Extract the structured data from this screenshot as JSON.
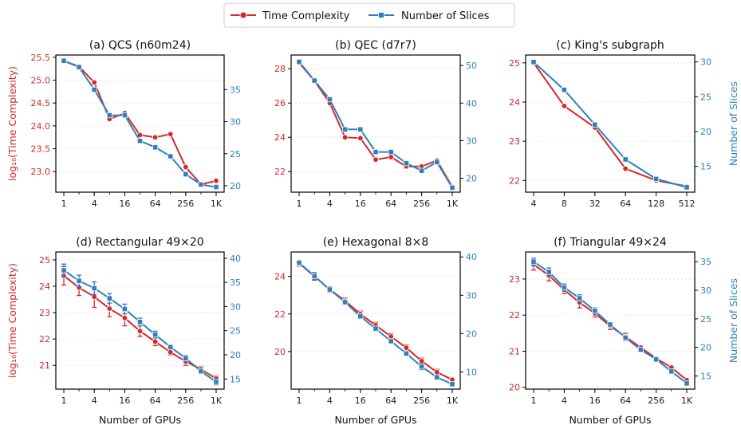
{
  "legend": {
    "time_label": "Time Complexity",
    "slices_label": "Number of Slices"
  },
  "colors": {
    "time": "#d62728",
    "slices": "#2f7fbf",
    "grid": "#d9d9d9"
  },
  "shared": {
    "xlabel": "Number of GPUs",
    "ylabel_left": "log₁₀(Time Complexity)",
    "ylabel_right": "Number of Slices"
  },
  "chart_data": [
    {
      "type": "line",
      "title": "(a) QCS (n60m24)",
      "x": [
        1,
        2,
        4,
        8,
        16,
        32,
        64,
        128,
        256,
        512,
        1024
      ],
      "xticks": [
        "1",
        "4",
        "16",
        "64",
        "256",
        "1K"
      ],
      "xtick_values": [
        1,
        4,
        16,
        64,
        256,
        1024
      ],
      "xscale": "log2",
      "left": {
        "name": "Time Complexity",
        "values": [
          25.42,
          25.3,
          24.95,
          24.15,
          24.28,
          23.8,
          23.75,
          23.82,
          23.1,
          22.72,
          22.8
        ],
        "ylim": [
          22.55,
          25.55
        ],
        "ticks": [
          23.0,
          23.5,
          24.0,
          24.5,
          25.0,
          25.5
        ],
        "tick_labels": [
          "23.0",
          "23.5",
          "24.0",
          "24.5",
          "25.0",
          "25.5"
        ]
      },
      "right": {
        "name": "Number of Slices",
        "values": [
          39.5,
          38.5,
          35,
          31,
          31,
          27,
          26,
          24.6,
          21.8,
          20.2,
          19.8
        ],
        "ylim": [
          19,
          40.4
        ],
        "ticks": [
          20,
          25,
          30,
          35
        ],
        "tick_labels": [
          "20",
          "25",
          "30",
          "35"
        ]
      },
      "xlabel": "",
      "show_left_label": true,
      "show_right_label": false,
      "grid": true
    },
    {
      "type": "line",
      "title": "(b) QEC (d7r7)",
      "x": [
        1,
        2,
        4,
        8,
        16,
        32,
        64,
        128,
        256,
        512,
        1024
      ],
      "xticks": [
        "1",
        "4",
        "16",
        "64",
        "256",
        "1K"
      ],
      "xtick_values": [
        1,
        4,
        16,
        64,
        256,
        1024
      ],
      "xscale": "log2",
      "left": {
        "name": "Time Complexity",
        "values": [
          28.35,
          27.3,
          26.0,
          24.0,
          23.95,
          22.7,
          22.85,
          22.3,
          22.3,
          22.65,
          21.1
        ],
        "ylim": [
          20.8,
          28.8
        ],
        "ticks": [
          22,
          24,
          26,
          28
        ],
        "tick_labels": [
          "22",
          "24",
          "26",
          "28"
        ]
      },
      "right": {
        "name": "Number of Slices",
        "values": [
          51,
          46,
          41,
          33,
          33,
          27,
          27,
          24,
          22,
          24.3,
          17.5
        ],
        "ylim": [
          16.3,
          52.8
        ],
        "ticks": [
          20,
          30,
          40,
          50
        ],
        "tick_labels": [
          "20",
          "30",
          "40",
          "50"
        ]
      },
      "xlabel": "",
      "show_left_label": false,
      "show_right_label": false,
      "grid": true
    },
    {
      "type": "line",
      "title": "(c) King's subgraph",
      "x": [
        4,
        8,
        32,
        64,
        128,
        512
      ],
      "xticks": [
        "4",
        "8",
        "32",
        "64",
        "128",
        "512"
      ],
      "xtick_values": [
        4,
        8,
        32,
        64,
        128,
        512
      ],
      "xscale": "category",
      "left": {
        "name": "Time Complexity",
        "values": [
          25.0,
          23.9,
          23.35,
          22.3,
          22.0,
          21.85
        ],
        "ylim": [
          21.7,
          25.2
        ],
        "ticks": [
          22,
          23,
          24,
          25
        ],
        "tick_labels": [
          "22",
          "23",
          "24",
          "25"
        ]
      },
      "right": {
        "name": "Number of Slices",
        "values": [
          30,
          26,
          21,
          16,
          13.2,
          12
        ],
        "ylim": [
          11.3,
          31
        ],
        "ticks": [
          15,
          20,
          25,
          30
        ],
        "tick_labels": [
          "15",
          "20",
          "25",
          "30"
        ]
      },
      "xlabel": "",
      "show_left_label": false,
      "show_right_label": true,
      "grid": true
    },
    {
      "type": "line",
      "title": "(d) Rectangular 49×20",
      "x": [
        1,
        2,
        4,
        8,
        16,
        32,
        64,
        128,
        256,
        512,
        1024
      ],
      "xticks": [
        "1",
        "4",
        "16",
        "64",
        "256",
        "1K"
      ],
      "xtick_values": [
        1,
        4,
        16,
        64,
        256,
        1024
      ],
      "xscale": "log2",
      "left": {
        "name": "Time Complexity",
        "values": [
          24.4,
          23.95,
          23.6,
          23.15,
          22.8,
          22.3,
          21.9,
          21.5,
          21.15,
          20.85,
          20.5
        ],
        "err": [
          0.35,
          0.3,
          0.4,
          0.3,
          0.3,
          0.2,
          0.15,
          0.1,
          0.15,
          0.1,
          0.1
        ],
        "ylim": [
          20.1,
          25.3
        ],
        "ticks": [
          21,
          22,
          23,
          24,
          25
        ],
        "tick_labels": [
          "21",
          "22",
          "23",
          "24",
          "25"
        ]
      },
      "right": {
        "name": "Number of Slices",
        "values": [
          37.5,
          35.3,
          33.8,
          31.7,
          29.5,
          26.8,
          24.2,
          21.6,
          19.3,
          16.6,
          14.4
        ],
        "err": [
          1.3,
          1.2,
          1.3,
          1.0,
          1.0,
          0.8,
          0.7,
          0.5,
          0.6,
          0.5,
          0.6
        ],
        "ylim": [
          12.9,
          41.3
        ],
        "ticks": [
          15,
          20,
          25,
          30,
          35,
          40
        ],
        "tick_labels": [
          "15",
          "20",
          "25",
          "30",
          "35",
          "40"
        ]
      },
      "xlabel": "Number of GPUs",
      "show_left_label": true,
      "show_right_label": false,
      "grid": true
    },
    {
      "type": "line",
      "title": "(e) Hexagonal 8×8",
      "x": [
        1,
        2,
        4,
        8,
        16,
        32,
        64,
        128,
        256,
        512,
        1024
      ],
      "xticks": [
        "1",
        "4",
        "16",
        "64",
        "256",
        "1K"
      ],
      "xtick_values": [
        1,
        4,
        16,
        64,
        256,
        1024
      ],
      "xscale": "log2",
      "left": {
        "name": "Time Complexity",
        "values": [
          24.7,
          24.0,
          23.3,
          22.7,
          22.0,
          21.4,
          20.8,
          20.2,
          19.5,
          18.9,
          18.5
        ],
        "err": [
          0.15,
          0.2,
          0.15,
          0.15,
          0.15,
          0.15,
          0.15,
          0.15,
          0.15,
          0.15,
          0.05
        ],
        "ylim": [
          18.0,
          25.3
        ],
        "ticks": [
          20,
          22,
          24
        ],
        "tick_labels": [
          "20",
          "22",
          "24"
        ]
      },
      "right": {
        "name": "Number of Slices",
        "values": [
          38.5,
          35.0,
          31.5,
          28.2,
          24.5,
          21.3,
          18.0,
          14.8,
          11.4,
          8.6,
          6.8
        ],
        "err": [
          0.6,
          0.8,
          0.6,
          0.6,
          0.6,
          0.6,
          0.6,
          0.6,
          0.8,
          0.6,
          0.3
        ],
        "ylim": [
          5.5,
          41.3
        ],
        "ticks": [
          10,
          20,
          30,
          40
        ],
        "tick_labels": [
          "10",
          "20",
          "30",
          "40"
        ]
      },
      "xlabel": "Number of GPUs",
      "show_left_label": false,
      "show_right_label": false,
      "grid": true
    },
    {
      "type": "line",
      "title": "(f) Triangular 49×24",
      "x": [
        1,
        2,
        4,
        8,
        16,
        32,
        64,
        128,
        256,
        512,
        1024
      ],
      "xticks": [
        "1",
        "4",
        "16",
        "64",
        "256",
        "1K"
      ],
      "xtick_values": [
        1,
        4,
        16,
        64,
        256,
        1024
      ],
      "xscale": "log2",
      "left": {
        "name": "Time Complexity",
        "values": [
          23.4,
          23.1,
          22.7,
          22.35,
          22.05,
          21.7,
          21.4,
          21.1,
          20.8,
          20.55,
          20.2
        ],
        "err": [
          0.15,
          0.15,
          0.1,
          0.15,
          0.1,
          0.1,
          0.1,
          0.05,
          0.05,
          0.05,
          0.05
        ],
        "ylim": [
          19.95,
          23.75
        ],
        "ticks": [
          20,
          21,
          22,
          23
        ],
        "tick_labels": [
          "20",
          "21",
          "22",
          "23"
        ]
      },
      "right": {
        "name": "Number of Slices",
        "values": [
          35.0,
          33.2,
          30.5,
          28.6,
          26.4,
          24.0,
          21.7,
          19.6,
          17.9,
          15.8,
          13.7
        ],
        "err": [
          0.6,
          0.7,
          0.6,
          0.6,
          0.5,
          0.4,
          0.4,
          0.3,
          0.3,
          0.3,
          0.3
        ],
        "ylim": [
          12.7,
          36.7
        ],
        "ticks": [
          15,
          20,
          25,
          30,
          35
        ],
        "tick_labels": [
          "15",
          "20",
          "25",
          "30",
          "35"
        ]
      },
      "xlabel": "Number of GPUs",
      "show_left_label": false,
      "show_right_label": true,
      "grid": true
    }
  ]
}
